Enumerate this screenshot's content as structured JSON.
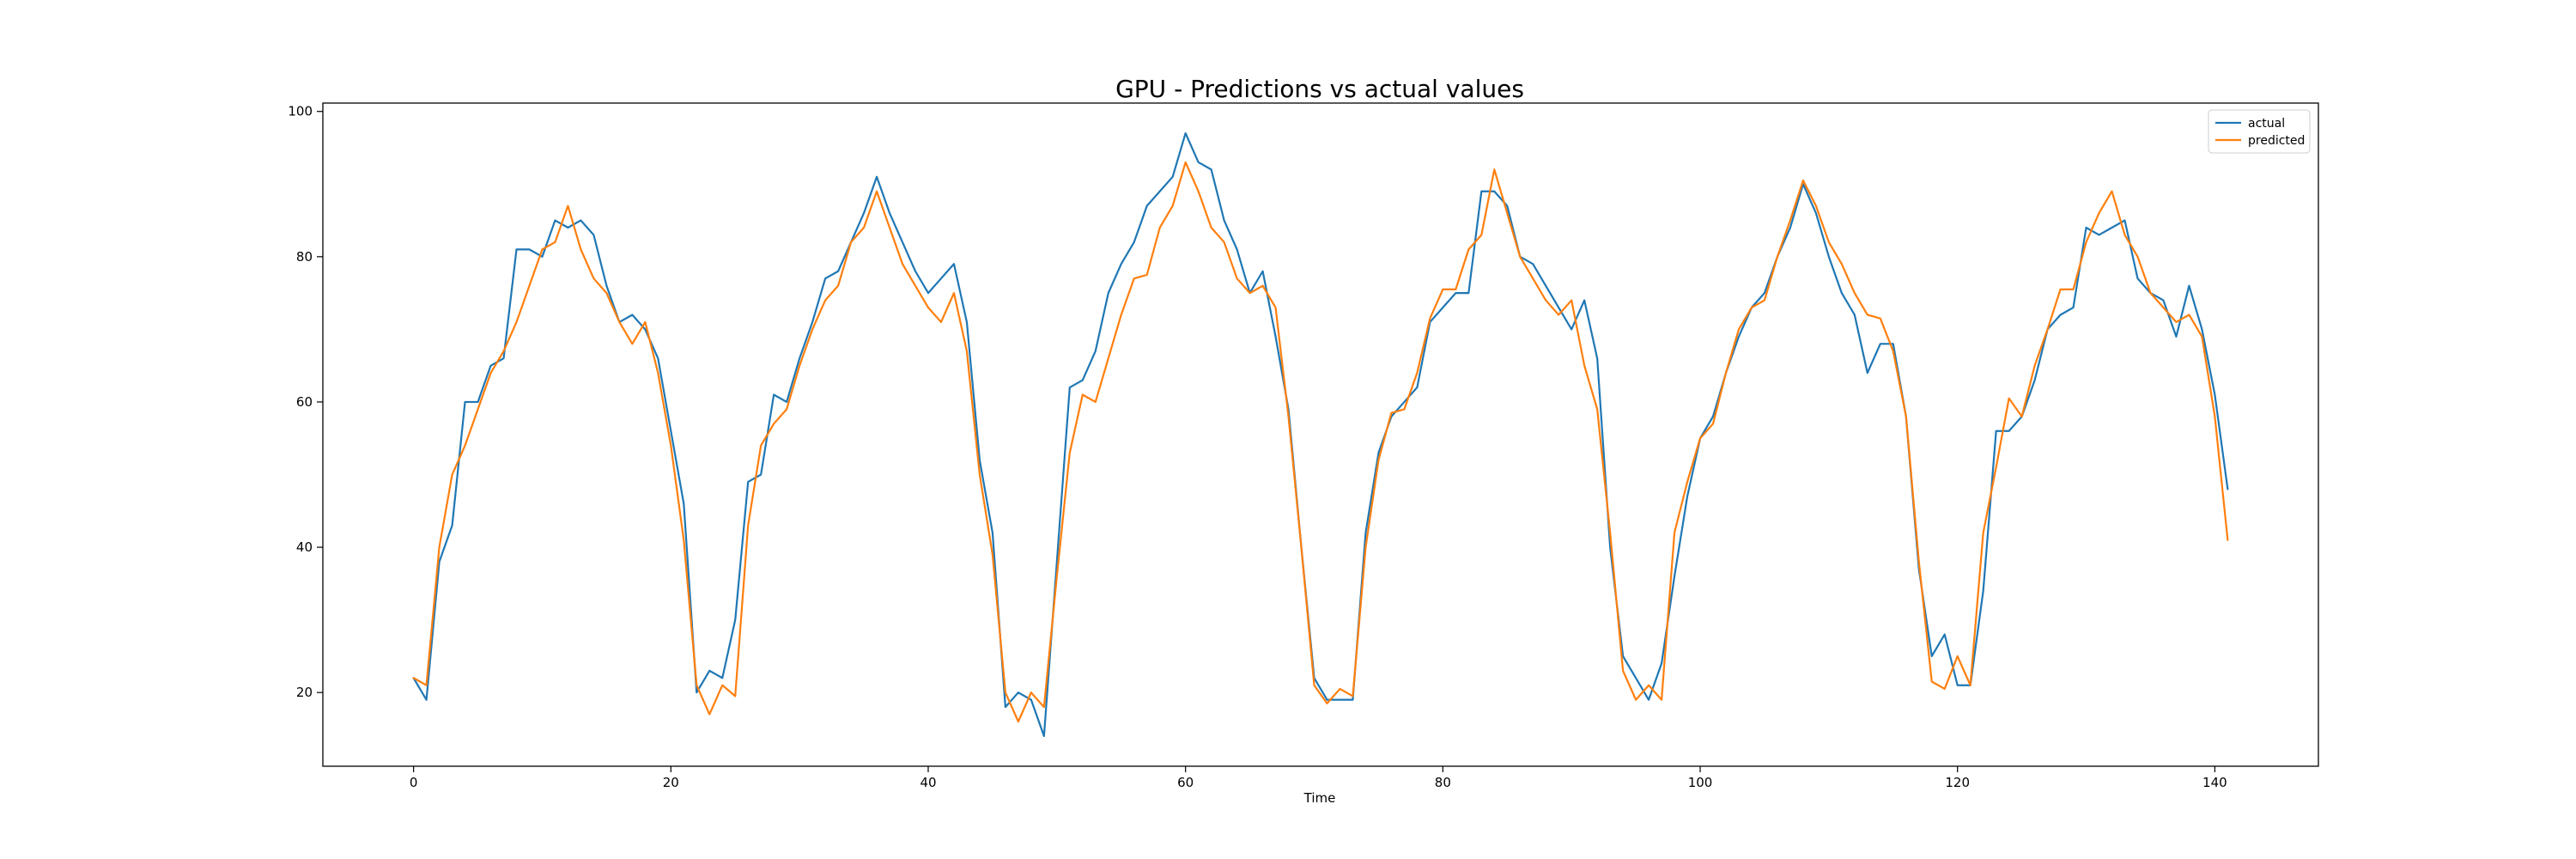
{
  "chart_data": {
    "type": "line",
    "title": "GPU - Predictions vs actual values",
    "xlabel": "Time",
    "ylabel": "",
    "xlim": [
      -7.05,
      148.05
    ],
    "ylim": [
      9.85,
      101.15
    ],
    "xticks": [
      0,
      20,
      40,
      60,
      80,
      100,
      120,
      140
    ],
    "yticks": [
      20,
      40,
      60,
      80,
      100
    ],
    "grid": false,
    "legend_position": "upper right",
    "series": [
      {
        "name": "actual",
        "color": "#1f77b4",
        "x": [
          0,
          1,
          2,
          3,
          4,
          5,
          6,
          7,
          8,
          9,
          10,
          11,
          12,
          13,
          14,
          15,
          16,
          17,
          18,
          19,
          20,
          21,
          22,
          23,
          24,
          25,
          26,
          27,
          28,
          29,
          30,
          31,
          32,
          33,
          34,
          35,
          36,
          37,
          38,
          39,
          40,
          41,
          42,
          43,
          44,
          45,
          46,
          47,
          48,
          49,
          50,
          51,
          52,
          53,
          54,
          55,
          56,
          57,
          58,
          59,
          60,
          61,
          62,
          63,
          64,
          65,
          66,
          67,
          68,
          69,
          70,
          71,
          72,
          73,
          74,
          75,
          76,
          77,
          78,
          79,
          80,
          81,
          82,
          83,
          84,
          85,
          86,
          87,
          88,
          89,
          90,
          91,
          92,
          93,
          94,
          95,
          96,
          97,
          98,
          99,
          100,
          101,
          102,
          103,
          104,
          105,
          106,
          107,
          108,
          109,
          110,
          111,
          112,
          113,
          114,
          115,
          116,
          117,
          118,
          119,
          120,
          121,
          122,
          123,
          124,
          125,
          126,
          127,
          128,
          129,
          130,
          131,
          132,
          133,
          134,
          135,
          136,
          137,
          138,
          139,
          140,
          141
        ],
        "values": [
          22,
          19,
          38,
          43,
          60,
          60,
          65,
          66,
          81,
          81,
          80,
          85,
          84,
          85,
          83,
          76,
          71,
          72,
          70,
          66,
          56,
          46,
          20,
          23,
          22,
          30,
          49,
          50,
          61,
          60,
          66,
          71,
          77,
          78,
          82,
          86,
          91,
          86,
          82,
          78,
          75,
          77,
          79,
          71,
          52,
          42,
          18,
          20,
          19,
          14,
          38,
          62,
          63,
          67,
          75,
          79,
          82,
          87,
          89,
          91,
          97,
          93,
          92,
          85,
          81,
          75,
          78,
          69,
          59,
          40,
          22,
          19,
          19,
          19,
          42,
          53,
          58,
          60,
          62,
          71,
          73,
          75,
          75,
          89,
          89,
          87,
          80,
          79,
          76,
          73,
          70,
          74,
          66,
          40,
          25,
          22,
          19,
          24,
          36,
          47,
          55,
          58,
          64,
          69,
          73,
          75,
          80,
          84,
          90,
          86,
          80,
          75,
          72,
          64,
          68,
          68,
          58,
          37,
          25,
          28,
          21,
          21,
          34,
          56,
          56,
          58,
          63,
          70,
          72,
          73,
          84,
          83,
          84,
          85,
          77,
          75,
          74,
          69,
          76,
          70,
          61,
          48
        ]
      },
      {
        "name": "predicted",
        "color": "#ff7f0e",
        "x": [
          0,
          1,
          2,
          3,
          4,
          5,
          6,
          7,
          8,
          9,
          10,
          11,
          12,
          13,
          14,
          15,
          16,
          17,
          18,
          19,
          20,
          21,
          22,
          23,
          24,
          25,
          26,
          27,
          28,
          29,
          30,
          31,
          32,
          33,
          34,
          35,
          36,
          37,
          38,
          39,
          40,
          41,
          42,
          43,
          44,
          45,
          46,
          47,
          48,
          49,
          50,
          51,
          52,
          53,
          54,
          55,
          56,
          57,
          58,
          59,
          60,
          61,
          62,
          63,
          64,
          65,
          66,
          67,
          68,
          69,
          70,
          71,
          72,
          73,
          74,
          75,
          76,
          77,
          78,
          79,
          80,
          81,
          82,
          83,
          84,
          85,
          86,
          87,
          88,
          89,
          90,
          91,
          92,
          93,
          94,
          95,
          96,
          97,
          98,
          99,
          100,
          101,
          102,
          103,
          104,
          105,
          106,
          107,
          108,
          109,
          110,
          111,
          112,
          113,
          114,
          115,
          116,
          117,
          118,
          119,
          120,
          121,
          122,
          123,
          124,
          125,
          126,
          127,
          128,
          129,
          130,
          131,
          132,
          133,
          134,
          135,
          136,
          137,
          138,
          139,
          140,
          141
        ],
        "values": [
          22,
          21,
          40,
          50,
          54,
          59,
          64,
          67,
          71,
          76,
          81,
          82,
          87,
          81,
          77,
          75,
          71,
          68,
          71,
          64,
          54,
          41,
          21,
          17,
          21,
          19.5,
          43,
          54,
          57,
          59,
          65,
          70,
          74,
          76,
          82,
          84,
          89,
          84,
          79,
          76,
          73,
          71,
          75,
          67,
          50,
          39,
          20,
          16,
          20,
          18,
          36,
          53,
          61,
          60,
          66,
          72,
          77,
          77.5,
          84,
          87,
          93,
          89,
          84,
          82,
          77,
          75,
          76,
          73,
          58,
          40,
          21,
          18.5,
          20.5,
          19.5,
          40,
          52,
          58.5,
          59,
          64,
          71.5,
          75.5,
          75.5,
          81,
          83,
          92,
          86,
          80,
          77,
          74,
          72,
          74,
          65,
          59,
          42,
          23,
          19,
          21,
          19,
          42,
          49,
          55,
          57,
          64,
          70,
          73,
          74,
          80,
          85,
          90.5,
          87,
          82,
          79,
          75,
          72,
          71.5,
          67,
          58,
          38,
          21.5,
          20.5,
          25,
          21,
          42,
          51,
          60.5,
          58,
          65,
          70,
          75.5,
          75.5,
          82,
          86,
          89,
          83,
          80,
          75,
          73,
          71,
          72,
          69,
          58,
          41
        ]
      }
    ]
  }
}
